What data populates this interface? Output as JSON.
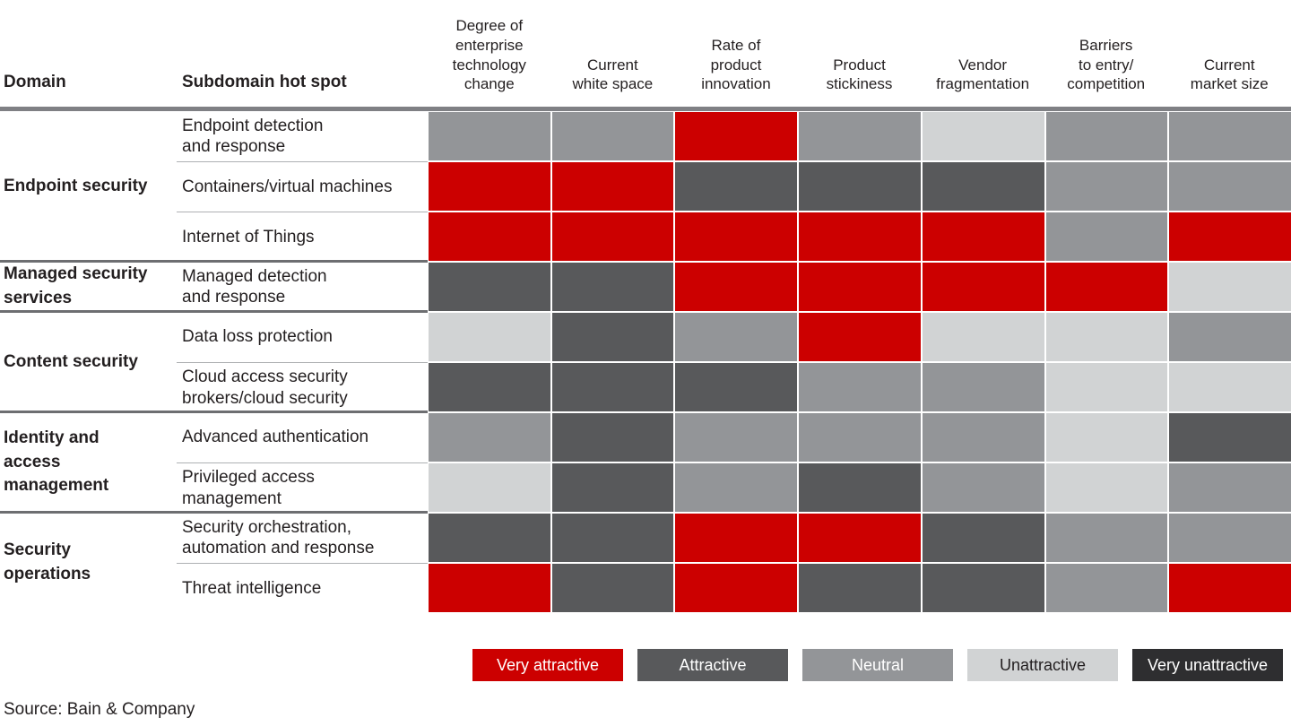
{
  "header": {
    "domain": "Domain",
    "subdomain": "Subdomain hot spot",
    "criteria": [
      "Degree of\nenterprise\ntechnology\nchange",
      "Current\nwhite space",
      "Rate of\nproduct\ninnovation",
      "Product\nstickiness",
      "Vendor\nfragmentation",
      "Barriers\nto entry/\ncompetition",
      "Current\nmarket size"
    ]
  },
  "groups": [
    {
      "domain": "Endpoint security",
      "rows": [
        {
          "subdomain": "Endpoint detection\nand response",
          "ratings": [
            "neutral",
            "neutral",
            "very-attractive",
            "neutral",
            "unattractive",
            "neutral",
            "neutral"
          ]
        },
        {
          "subdomain": "Containers/virtual machines",
          "ratings": [
            "very-attractive",
            "very-attractive",
            "attractive",
            "attractive",
            "attractive",
            "neutral",
            "neutral"
          ]
        },
        {
          "subdomain": "Internet of Things",
          "ratings": [
            "very-attractive",
            "very-attractive",
            "very-attractive",
            "very-attractive",
            "very-attractive",
            "neutral",
            "very-attractive"
          ]
        }
      ]
    },
    {
      "domain": "Managed security\nservices",
      "rows": [
        {
          "subdomain": "Managed detection\nand response",
          "ratings": [
            "attractive",
            "attractive",
            "very-attractive",
            "very-attractive",
            "very-attractive",
            "very-attractive",
            "unattractive"
          ]
        }
      ]
    },
    {
      "domain": "Content security",
      "rows": [
        {
          "subdomain": "Data loss protection",
          "ratings": [
            "unattractive",
            "attractive",
            "neutral",
            "very-attractive",
            "unattractive",
            "unattractive",
            "neutral"
          ]
        },
        {
          "subdomain": "Cloud access security\nbrokers/cloud security",
          "ratings": [
            "attractive",
            "attractive",
            "attractive",
            "neutral",
            "neutral",
            "unattractive",
            "unattractive"
          ]
        }
      ]
    },
    {
      "domain": "Identity and\naccess\nmanagement",
      "rows": [
        {
          "subdomain": "Advanced authentication",
          "ratings": [
            "neutral",
            "attractive",
            "neutral",
            "neutral",
            "neutral",
            "unattractive",
            "attractive"
          ]
        },
        {
          "subdomain": "Privileged access\nmanagement",
          "ratings": [
            "unattractive",
            "attractive",
            "neutral",
            "attractive",
            "neutral",
            "unattractive",
            "neutral"
          ]
        }
      ]
    },
    {
      "domain": "Security\noperations",
      "rows": [
        {
          "subdomain": "Security orchestration,\nautomation and response",
          "ratings": [
            "attractive",
            "attractive",
            "very-attractive",
            "very-attractive",
            "attractive",
            "neutral",
            "neutral"
          ]
        },
        {
          "subdomain": "Threat intelligence",
          "ratings": [
            "very-attractive",
            "attractive",
            "very-attractive",
            "attractive",
            "attractive",
            "neutral",
            "very-attractive"
          ]
        }
      ]
    }
  ],
  "legend": [
    {
      "label": "Very attractive",
      "key": "very-attractive",
      "dark_text": false
    },
    {
      "label": "Attractive",
      "key": "attractive",
      "dark_text": false
    },
    {
      "label": "Neutral",
      "key": "neutral",
      "dark_text": false
    },
    {
      "label": "Unattractive",
      "key": "unattractive",
      "dark_text": true
    },
    {
      "label": "Very unattractive",
      "key": "very-unattractive",
      "dark_text": false
    }
  ],
  "colors": {
    "very-attractive": "#CC0000",
    "attractive": "#58595B",
    "neutral": "#939598",
    "unattractive": "#D1D3D4",
    "very-unattractive": "#2E2E30",
    "header_bar": "#7F8084",
    "group_divider": "#6D6E71",
    "row_divider": "#AEB0B3",
    "legend_dark_text": "#231F20"
  },
  "source": "Source: Bain & Company",
  "chart_data": {
    "type": "heatmap",
    "columns": [
      "Degree of enterprise technology change",
      "Current white space",
      "Rate of product innovation",
      "Product stickiness",
      "Vendor fragmentation",
      "Barriers to entry/competition",
      "Current market size"
    ],
    "row_header_columns": [
      "Domain",
      "Subdomain hot spot"
    ],
    "scale": [
      "Very attractive",
      "Attractive",
      "Neutral",
      "Unattractive",
      "Very unattractive"
    ],
    "legend_position": "bottom",
    "rows": [
      {
        "domain": "Endpoint security",
        "subdomain": "Endpoint detection and response",
        "ratings": [
          "Neutral",
          "Neutral",
          "Very attractive",
          "Neutral",
          "Unattractive",
          "Neutral",
          "Neutral"
        ]
      },
      {
        "domain": "Endpoint security",
        "subdomain": "Containers/virtual machines",
        "ratings": [
          "Very attractive",
          "Very attractive",
          "Attractive",
          "Attractive",
          "Attractive",
          "Neutral",
          "Neutral"
        ]
      },
      {
        "domain": "Endpoint security",
        "subdomain": "Internet of Things",
        "ratings": [
          "Very attractive",
          "Very attractive",
          "Very attractive",
          "Very attractive",
          "Very attractive",
          "Neutral",
          "Very attractive"
        ]
      },
      {
        "domain": "Managed security services",
        "subdomain": "Managed detection and response",
        "ratings": [
          "Attractive",
          "Attractive",
          "Very attractive",
          "Very attractive",
          "Very attractive",
          "Very attractive",
          "Unattractive"
        ]
      },
      {
        "domain": "Content security",
        "subdomain": "Data loss protection",
        "ratings": [
          "Unattractive",
          "Attractive",
          "Neutral",
          "Very attractive",
          "Unattractive",
          "Unattractive",
          "Neutral"
        ]
      },
      {
        "domain": "Content security",
        "subdomain": "Cloud access security brokers/cloud security",
        "ratings": [
          "Attractive",
          "Attractive",
          "Attractive",
          "Neutral",
          "Neutral",
          "Unattractive",
          "Unattractive"
        ]
      },
      {
        "domain": "Identity and access management",
        "subdomain": "Advanced authentication",
        "ratings": [
          "Neutral",
          "Attractive",
          "Neutral",
          "Neutral",
          "Neutral",
          "Unattractive",
          "Attractive"
        ]
      },
      {
        "domain": "Identity and access management",
        "subdomain": "Privileged access management",
        "ratings": [
          "Unattractive",
          "Attractive",
          "Neutral",
          "Attractive",
          "Neutral",
          "Unattractive",
          "Neutral"
        ]
      },
      {
        "domain": "Security operations",
        "subdomain": "Security orchestration, automation and response",
        "ratings": [
          "Attractive",
          "Attractive",
          "Very attractive",
          "Very attractive",
          "Attractive",
          "Neutral",
          "Neutral"
        ]
      },
      {
        "domain": "Security operations",
        "subdomain": "Threat intelligence",
        "ratings": [
          "Very attractive",
          "Attractive",
          "Very attractive",
          "Attractive",
          "Attractive",
          "Neutral",
          "Very attractive"
        ]
      }
    ]
  }
}
